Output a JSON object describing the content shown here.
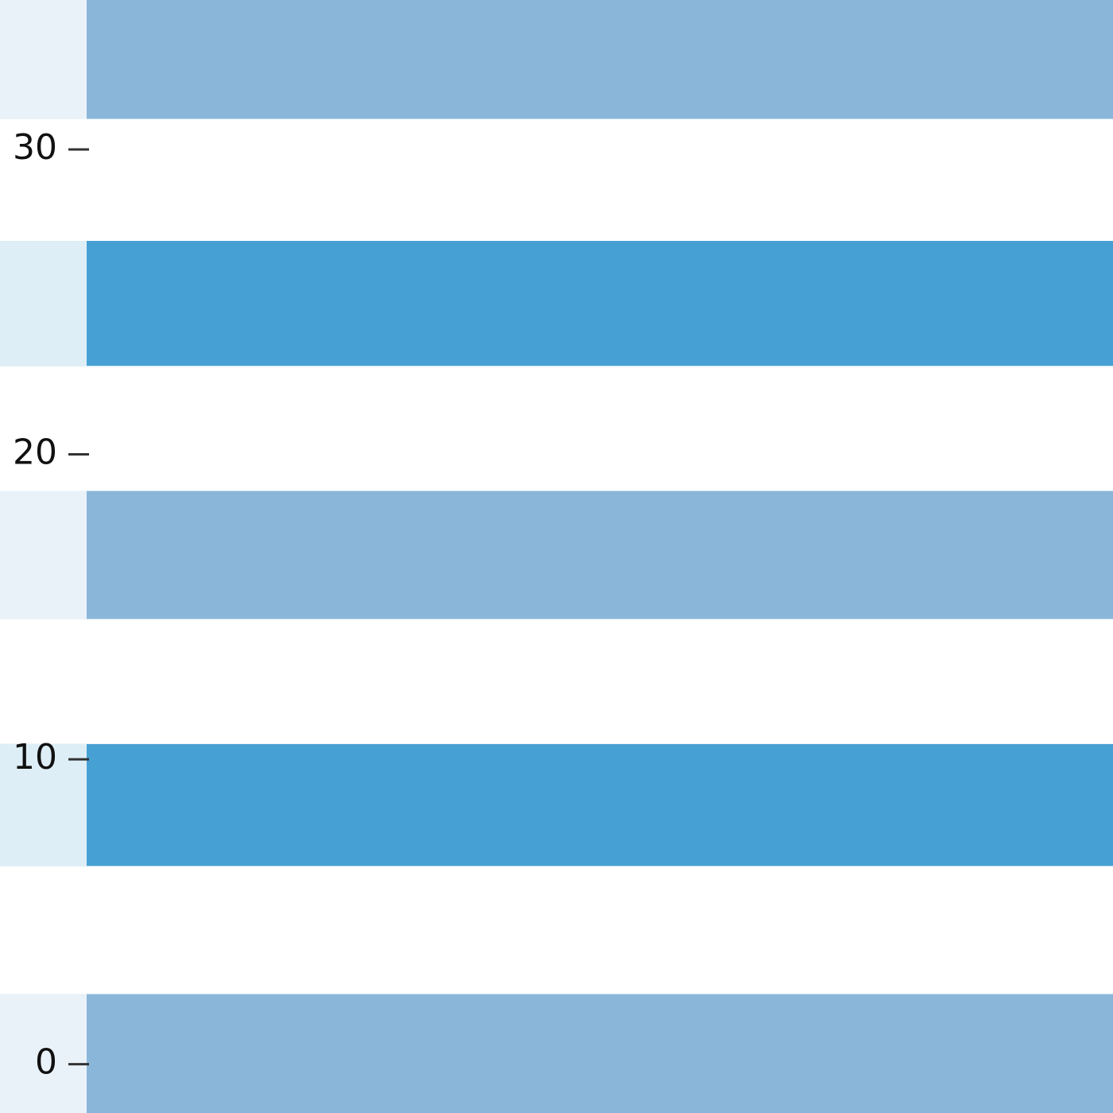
{
  "chart_data": {
    "type": "bands",
    "ylim": [
      -1.6,
      34.9
    ],
    "yticks": [
      0,
      10,
      20,
      30
    ],
    "bands": [
      {
        "start": 31,
        "end": 35,
        "color": "#8ab6da"
      },
      {
        "start": 22.9,
        "end": 27,
        "color": "#47a0d4"
      },
      {
        "start": 14.6,
        "end": 18.8,
        "color": "#8ab6da"
      },
      {
        "start": 6.5,
        "end": 10.5,
        "color": "#47a0d4"
      },
      {
        "start": -1.6,
        "end": 2.3,
        "color": "#8ab6da"
      }
    ]
  }
}
